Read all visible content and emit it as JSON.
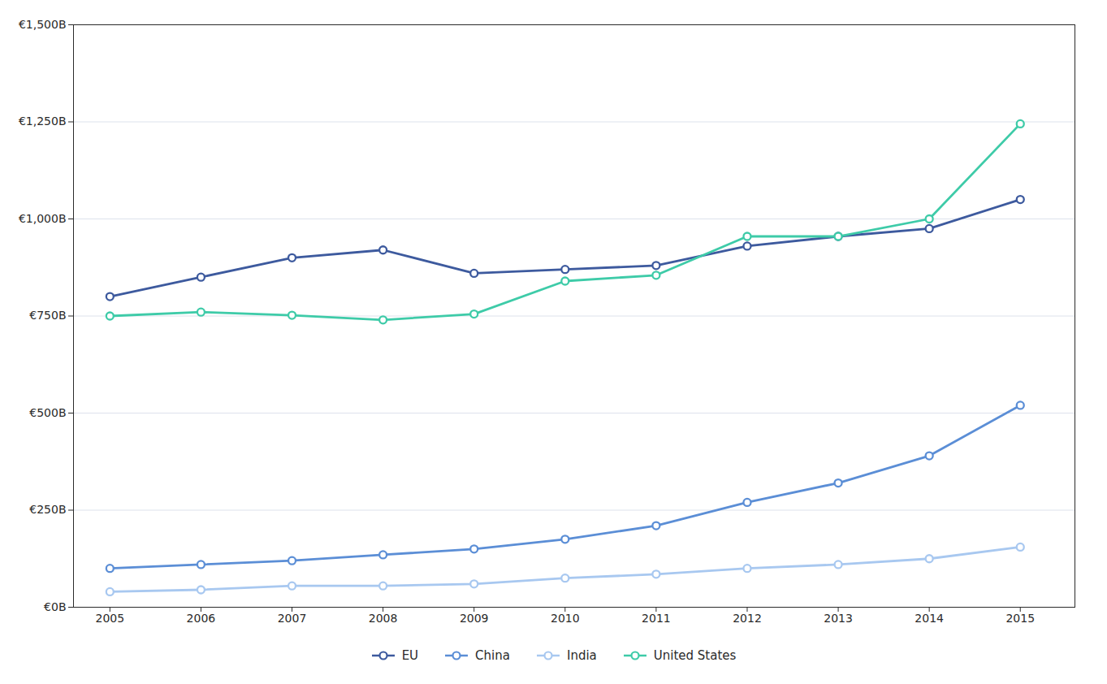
{
  "chart_data": {
    "type": "line",
    "x": [
      2005,
      2006,
      2007,
      2008,
      2009,
      2010,
      2011,
      2012,
      2013,
      2014,
      2015
    ],
    "series": [
      {
        "name": "EU",
        "color": "#3d5a9e",
        "values": [
          800,
          850,
          900,
          920,
          860,
          870,
          880,
          930,
          955,
          975,
          1050
        ]
      },
      {
        "name": "China",
        "color": "#5b8ed6",
        "values": [
          100,
          110,
          120,
          135,
          150,
          175,
          210,
          270,
          320,
          390,
          520
        ]
      },
      {
        "name": "India",
        "color": "#a8c8f0",
        "values": [
          40,
          45,
          55,
          55,
          60,
          75,
          85,
          100,
          110,
          125,
          155
        ]
      },
      {
        "name": "United States",
        "color": "#3ecba8",
        "values": [
          750,
          760,
          752,
          740,
          755,
          840,
          855,
          955,
          955,
          1000,
          1245
        ]
      }
    ],
    "xlim": [
      2004.6,
      2015.6
    ],
    "xticks": [
      2005,
      2006,
      2007,
      2008,
      2009,
      2010,
      2011,
      2012,
      2013,
      2014,
      2015
    ],
    "ylim": [
      0,
      1500
    ],
    "yticks": [
      {
        "value": 0,
        "label": "€0B"
      },
      {
        "value": 250,
        "label": "€250B"
      },
      {
        "value": 500,
        "label": "€500B"
      },
      {
        "value": 750,
        "label": "€750B"
      },
      {
        "value": 1000,
        "label": "€1,000B"
      },
      {
        "value": 1250,
        "label": "€1,250B"
      },
      {
        "value": 1500,
        "label": "€1,500B"
      }
    ],
    "grid": true,
    "marker": "circle",
    "legend": "bottom"
  }
}
